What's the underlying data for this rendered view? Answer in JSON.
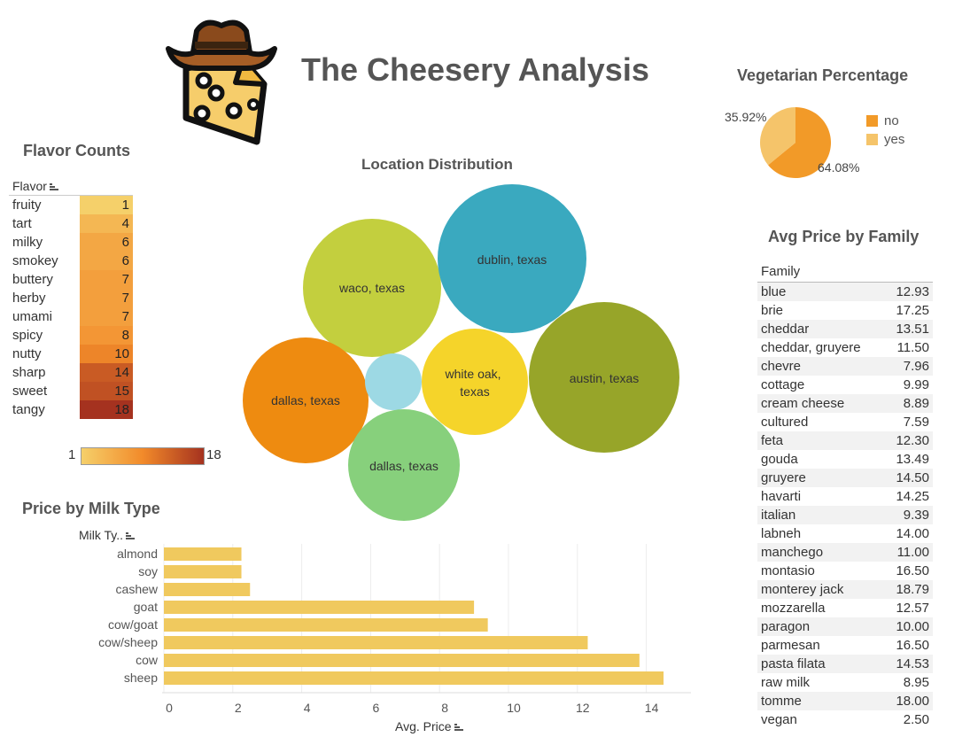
{
  "title": "The Cheesery Analysis",
  "logo_icon": "cowboy-hat-cheese-icon",
  "flavor_counts": {
    "title": "Flavor Counts",
    "header": "Flavor",
    "legend_min": "1",
    "legend_max": "18",
    "colors": {
      "low": "#f5d06a",
      "mid": "#f28a2a",
      "high": "#a5321f"
    },
    "rows": [
      {
        "flavor": "fruity",
        "count": 1
      },
      {
        "flavor": "tart",
        "count": 4
      },
      {
        "flavor": "milky",
        "count": 6
      },
      {
        "flavor": "smokey",
        "count": 6
      },
      {
        "flavor": "buttery",
        "count": 7
      },
      {
        "flavor": "herby",
        "count": 7
      },
      {
        "flavor": "umami",
        "count": 7
      },
      {
        "flavor": "spicy",
        "count": 8
      },
      {
        "flavor": "nutty",
        "count": 10
      },
      {
        "flavor": "sharp",
        "count": 14
      },
      {
        "flavor": "sweet",
        "count": 15
      },
      {
        "flavor": "tangy",
        "count": 18
      }
    ]
  },
  "location_distribution": {
    "title": "Location Distribution",
    "bubbles": [
      {
        "label": "waco, texas",
        "color": "#c3cf3e"
      },
      {
        "label": "dublin, texas",
        "color": "#3aa9bf"
      },
      {
        "label": "dallas, texas",
        "color": "#ee8b10"
      },
      {
        "label": "",
        "color": "#9dd9e4"
      },
      {
        "label": "white oak, texas",
        "color": "#f5d42a"
      },
      {
        "label": "austin, texas",
        "color": "#97a529"
      },
      {
        "label": "dallas, texas",
        "color": "#87d07c"
      }
    ]
  },
  "vegetarian": {
    "title": "Vegetarian Percentage",
    "legend": [
      {
        "label": "no",
        "color": "#f29a28"
      },
      {
        "label": "yes",
        "color": "#f5c46a"
      }
    ]
  },
  "family_prices": {
    "title": "Avg Price by Family",
    "header": "Family",
    "rows": [
      {
        "family": "blue",
        "price": "12.93"
      },
      {
        "family": "brie",
        "price": "17.25"
      },
      {
        "family": "cheddar",
        "price": "13.51"
      },
      {
        "family": "cheddar, gruyere",
        "price": "11.50"
      },
      {
        "family": "chevre",
        "price": "7.96"
      },
      {
        "family": "cottage",
        "price": "9.99"
      },
      {
        "family": "cream cheese",
        "price": "8.89"
      },
      {
        "family": "cultured",
        "price": "7.59"
      },
      {
        "family": "feta",
        "price": "12.30"
      },
      {
        "family": "gouda",
        "price": "13.49"
      },
      {
        "family": "gruyere",
        "price": "14.50"
      },
      {
        "family": "havarti",
        "price": "14.25"
      },
      {
        "family": "italian",
        "price": "9.39"
      },
      {
        "family": "labneh",
        "price": "14.00"
      },
      {
        "family": "manchego",
        "price": "11.00"
      },
      {
        "family": "montasio",
        "price": "16.50"
      },
      {
        "family": "monterey jack",
        "price": "18.79"
      },
      {
        "family": "mozzarella",
        "price": "12.57"
      },
      {
        "family": "paragon",
        "price": "10.00"
      },
      {
        "family": "parmesan",
        "price": "16.50"
      },
      {
        "family": "pasta filata",
        "price": "14.53"
      },
      {
        "family": "raw milk",
        "price": "8.95"
      },
      {
        "family": "tomme",
        "price": "18.00"
      },
      {
        "family": "vegan",
        "price": "2.50"
      }
    ]
  },
  "price_by_milk": {
    "title": "Price by Milk Type",
    "ylabel": "Milk Ty..",
    "xlabel": "Avg. Price",
    "bar_color": "#f0c95e"
  },
  "chart_data": [
    {
      "type": "pie",
      "title": "Vegetarian Percentage",
      "categories": [
        "no",
        "yes"
      ],
      "values": [
        64.08,
        35.92
      ],
      "value_labels": [
        "64.08%",
        "35.92%"
      ]
    },
    {
      "type": "bar",
      "title": "Price by Milk Type",
      "categories": [
        "almond",
        "soy",
        "cashew",
        "goat",
        "cow/goat",
        "cow/sheep",
        "cow",
        "sheep"
      ],
      "values": [
        2.25,
        2.25,
        2.5,
        9.0,
        9.4,
        12.3,
        13.8,
        14.5
      ],
      "xlabel": "Avg. Price",
      "ylabel": "Milk Ty..",
      "xlim": [
        0,
        15
      ],
      "xticks": [
        0,
        2,
        4,
        6,
        8,
        10,
        12,
        14
      ],
      "grid": true,
      "orientation": "horizontal"
    },
    {
      "type": "table",
      "title": "Flavor Counts",
      "categories": [
        "fruity",
        "tart",
        "milky",
        "smokey",
        "buttery",
        "herby",
        "umami",
        "spicy",
        "nutty",
        "sharp",
        "sweet",
        "tangy"
      ],
      "values": [
        1,
        4,
        6,
        6,
        7,
        7,
        7,
        8,
        10,
        14,
        15,
        18
      ]
    }
  ]
}
